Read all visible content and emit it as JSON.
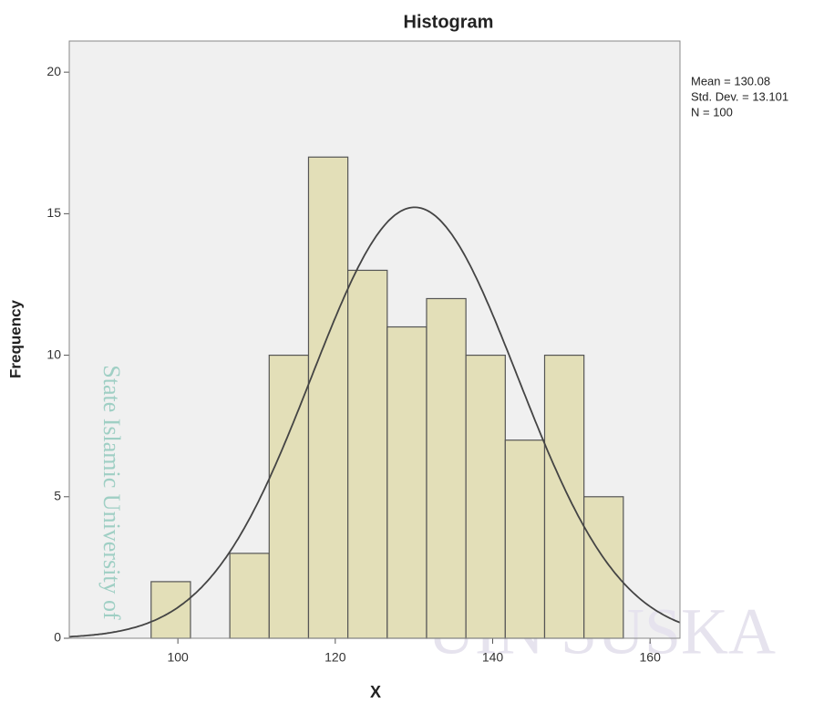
{
  "chart_data": {
    "type": "histogram",
    "title": "Histogram",
    "xlabel": "X",
    "ylabel": "Frequency",
    "bins": [
      96.6,
      101.6,
      106.6,
      111.6,
      116.6,
      121.6,
      126.6,
      131.6,
      136.6,
      141.6,
      146.6,
      151.6,
      156.6
    ],
    "counts": [
      2,
      0,
      3,
      10,
      17,
      13,
      11,
      12,
      10,
      7,
      10,
      5
    ],
    "color": "#e3dfb8",
    "edge_color": "#555555",
    "curve": {
      "mean": 130.08,
      "sd": 13.101,
      "n": 100,
      "color": "#444444"
    },
    "annotations": [
      "Mean = 130.08",
      "Std. Dev. = 13.101",
      "N = 100"
    ],
    "xlim": [
      86.2,
      163.8
    ],
    "ylim": [
      0,
      21.1
    ],
    "xticks": [
      100,
      120,
      140,
      160
    ],
    "yticks": [
      0,
      5,
      10,
      15,
      20
    ],
    "watermarks": [
      "State Islamic University of",
      "UIN SUSKA"
    ]
  }
}
